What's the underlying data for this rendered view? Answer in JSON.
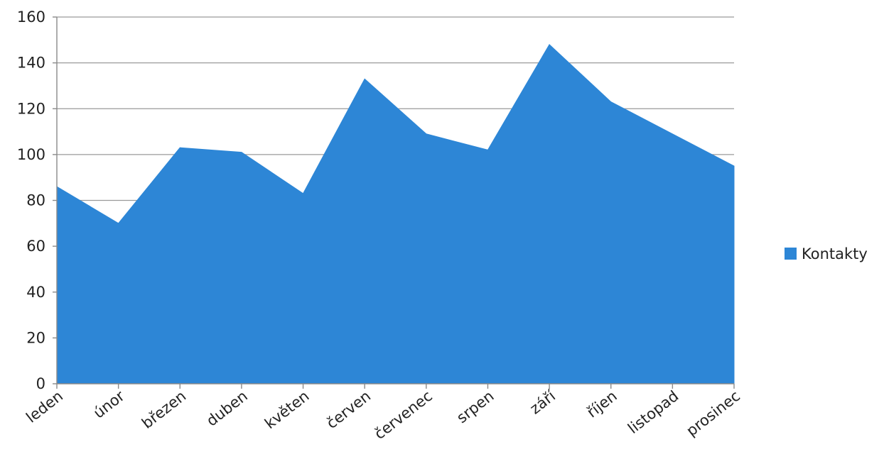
{
  "chart_data": {
    "type": "area",
    "title": "",
    "xlabel": "",
    "ylabel": "",
    "categories": [
      "leden",
      "únor",
      "březen",
      "duben",
      "květen",
      "červen",
      "červenec",
      "srpen",
      "září",
      "říjen",
      "listopad",
      "prosinec"
    ],
    "series": [
      {
        "name": "Kontakty",
        "color": "#2d86d6",
        "values": [
          86,
          70,
          103,
          101,
          83,
          133,
          109,
          102,
          148,
          123,
          109,
          95
        ]
      }
    ],
    "ylim": [
      0,
      160
    ],
    "yticks": [
      0,
      20,
      40,
      60,
      80,
      100,
      120,
      140,
      160
    ],
    "grid": true,
    "legend_position": "right"
  }
}
